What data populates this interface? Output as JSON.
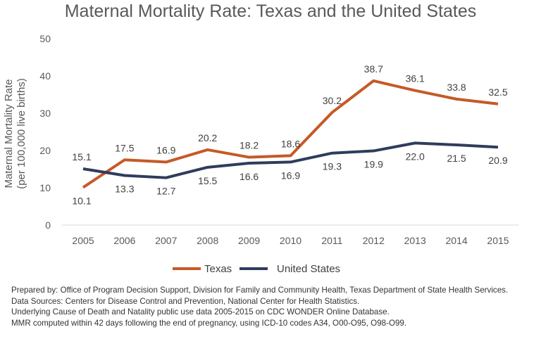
{
  "chart_data": {
    "type": "line",
    "title": "Maternal Mortality Rate: Texas and the United States",
    "ylabel": [
      "Maternal Mortality Rate",
      "(per 100,000 live births)"
    ],
    "xlabel": "",
    "categories": [
      "2005",
      "2006",
      "2007",
      "2008",
      "2009",
      "2010",
      "2011",
      "2012",
      "2013",
      "2014",
      "2015"
    ],
    "ylim": [
      0,
      50
    ],
    "yticks": [
      0,
      10,
      20,
      30,
      40,
      50
    ],
    "grid": false,
    "legend": "bottom",
    "series": [
      {
        "name": "Texas",
        "color": "#C55A28",
        "values": [
          10.1,
          17.5,
          16.9,
          20.2,
          18.2,
          18.6,
          30.2,
          38.7,
          36.1,
          33.8,
          32.5
        ],
        "labels": [
          "10.1",
          "17.5",
          "16.9",
          "20.2",
          "18.2",
          "18.6",
          "30.2",
          "38.7",
          "36.1",
          "33.8",
          "32.5"
        ]
      },
      {
        "name": "United States",
        "color": "#2F3C5C",
        "values": [
          15.1,
          13.3,
          12.7,
          15.5,
          16.6,
          16.9,
          19.3,
          19.9,
          22.0,
          21.5,
          20.9
        ],
        "labels": [
          "15.1",
          "13.3",
          "12.7",
          "15.5",
          "16.6",
          "16.9",
          "19.3",
          "19.9",
          "22.0",
          "21.5",
          "20.9"
        ]
      }
    ]
  },
  "notes": [
    "Prepared by: Office of Program Decision Support, Division for Family and Community Health, Texas Department of State Health Services.",
    "Data Sources: Centers for Disease Control and Prevention, National Center for Health Statistics.",
    "Underlying Cause of Death and Natality public use data 2005-2015 on CDC WONDER Online Database.",
    "MMR computed within 42 days following the end of pregnancy, using ICD-10 codes A34, O00-O95, O98-O99."
  ]
}
